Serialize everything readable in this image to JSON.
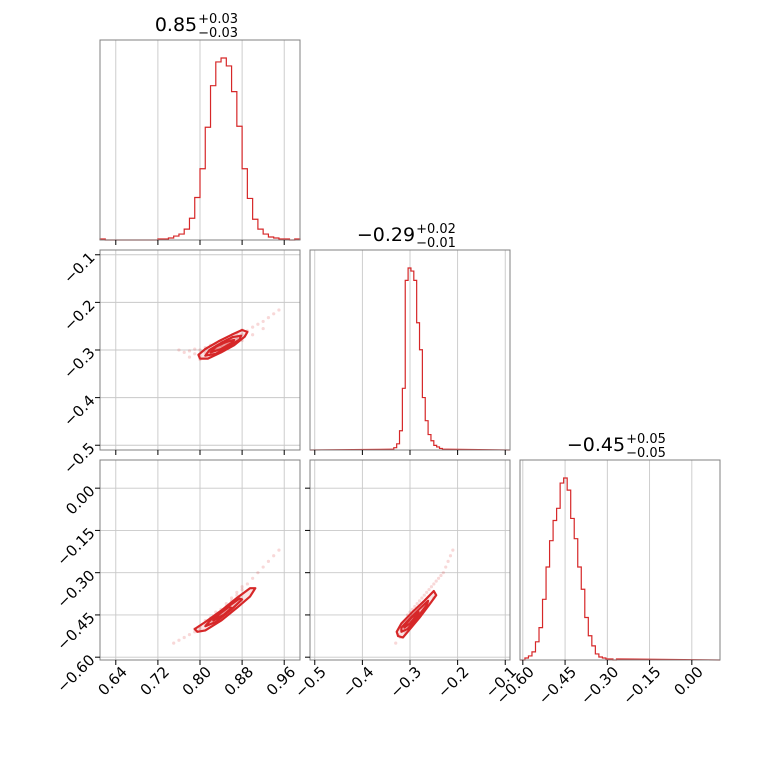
{
  "chart_data": {
    "type": "corner",
    "color": "#d62728",
    "grid": true,
    "parameters": [
      {
        "index": 0,
        "title": {
          "value": "0.85",
          "plus": "+0.03",
          "minus": "−0.03"
        },
        "range": [
          0.61,
          0.99
        ],
        "ticks": [
          0.64,
          0.72,
          0.8,
          0.88,
          0.96
        ],
        "tick_labels": [
          "0.64",
          "0.72",
          "0.80",
          "0.88",
          "0.96"
        ],
        "hist_bin_width": 0.01,
        "hist_x": [
          0.61,
          0.62,
          0.63,
          0.64,
          0.65,
          0.66,
          0.67,
          0.68,
          0.69,
          0.7,
          0.71,
          0.72,
          0.73,
          0.74,
          0.75,
          0.76,
          0.77,
          0.78,
          0.79,
          0.8,
          0.81,
          0.82,
          0.83,
          0.84,
          0.85,
          0.86,
          0.87,
          0.88,
          0.89,
          0.9,
          0.91,
          0.92,
          0.93,
          0.94,
          0.95,
          0.96,
          0.97,
          0.98
        ],
        "hist_counts": [
          1,
          0,
          0,
          0,
          0,
          0,
          0,
          0,
          0,
          0,
          0,
          1,
          1,
          2,
          4,
          6,
          11,
          22,
          43,
          72,
          114,
          156,
          180,
          184,
          176,
          150,
          115,
          72,
          42,
          21,
          11,
          6,
          3,
          2,
          1,
          1,
          0,
          1
        ]
      },
      {
        "index": 1,
        "title": {
          "value": "−0.29",
          "plus": "+0.02",
          "minus": "−0.01"
        },
        "range": [
          -0.51,
          -0.09
        ],
        "ticks": [
          -0.5,
          -0.4,
          -0.3,
          -0.2,
          -0.1
        ],
        "tick_labels": [
          "−0.5",
          "−0.4",
          "−0.3",
          "−0.2",
          "−0.1"
        ],
        "hist_bin_width": 0.006,
        "hist_x": [
          -0.34,
          -0.334,
          -0.328,
          -0.322,
          -0.316,
          -0.31,
          -0.304,
          -0.298,
          -0.292,
          -0.286,
          -0.28,
          -0.274,
          -0.268,
          -0.262,
          -0.256,
          -0.25,
          -0.244,
          -0.238,
          -0.232,
          -0.226
        ],
        "hist_counts": [
          1,
          3,
          8,
          25,
          80,
          220,
          236,
          232,
          220,
          165,
          130,
          68,
          38,
          20,
          12,
          6,
          4,
          2,
          1,
          1
        ]
      },
      {
        "index": 2,
        "title": {
          "value": "−0.45",
          "plus": "+0.05",
          "minus": "−0.05"
        },
        "range": [
          -0.61,
          0.1
        ],
        "ticks": [
          -0.6,
          -0.45,
          -0.3,
          -0.15,
          0.0
        ],
        "tick_labels": [
          "−0.60",
          "−0.45",
          "−0.30",
          "−0.15",
          "0.00"
        ],
        "y_tick_labels": [
          "−0.60",
          "−0.45",
          "−0.30",
          "−0.15",
          "0.00"
        ],
        "hist_bin_width": 0.0125,
        "hist_x": [
          -0.605,
          -0.5925,
          -0.58,
          -0.5675,
          -0.555,
          -0.5425,
          -0.53,
          -0.5175,
          -0.505,
          -0.4925,
          -0.48,
          -0.4675,
          -0.455,
          -0.4425,
          -0.43,
          -0.4175,
          -0.405,
          -0.3925,
          -0.38,
          -0.3675,
          -0.355,
          -0.3425,
          -0.33,
          -0.3175,
          -0.305,
          -0.2925,
          -0.28,
          -0.2675
        ],
        "hist_counts": [
          0,
          2,
          4,
          8,
          18,
          32,
          60,
          92,
          118,
          138,
          150,
          175,
          180,
          168,
          140,
          120,
          92,
          70,
          42,
          24,
          14,
          6,
          3,
          2,
          1,
          1,
          0,
          1
        ]
      }
    ],
    "scatter_panels": [
      {
        "x_param": 0,
        "y_param": 1,
        "points": [
          [
            0.77,
            -0.305
          ],
          [
            0.78,
            -0.302
          ],
          [
            0.79,
            -0.308
          ],
          [
            0.79,
            -0.298
          ],
          [
            0.8,
            -0.312
          ],
          [
            0.8,
            -0.3
          ],
          [
            0.81,
            -0.305
          ],
          [
            0.81,
            -0.295
          ],
          [
            0.82,
            -0.3
          ],
          [
            0.82,
            -0.29
          ],
          [
            0.83,
            -0.296
          ],
          [
            0.83,
            -0.286
          ],
          [
            0.84,
            -0.29
          ],
          [
            0.84,
            -0.28
          ],
          [
            0.85,
            -0.285
          ],
          [
            0.85,
            -0.276
          ],
          [
            0.86,
            -0.28
          ],
          [
            0.86,
            -0.27
          ],
          [
            0.87,
            -0.274
          ],
          [
            0.87,
            -0.265
          ],
          [
            0.88,
            -0.268
          ],
          [
            0.88,
            -0.258
          ],
          [
            0.89,
            -0.26
          ],
          [
            0.9,
            -0.252
          ],
          [
            0.91,
            -0.246
          ],
          [
            0.92,
            -0.24
          ],
          [
            0.93,
            -0.232
          ],
          [
            0.94,
            -0.224
          ],
          [
            0.95,
            -0.216
          ],
          [
            0.76,
            -0.3
          ],
          [
            0.78,
            -0.315
          ],
          [
            0.8,
            -0.32
          ],
          [
            0.82,
            -0.312
          ],
          [
            0.84,
            -0.3
          ],
          [
            0.86,
            -0.29
          ],
          [
            0.88,
            -0.28
          ],
          [
            0.9,
            -0.268
          ],
          [
            0.92,
            -0.255
          ]
        ],
        "contours": [
          [
            [
              0.8,
              -0.318
            ],
            [
              0.815,
              -0.318
            ],
            [
              0.84,
              -0.305
            ],
            [
              0.865,
              -0.29
            ],
            [
              0.885,
              -0.272
            ],
            [
              0.89,
              -0.262
            ],
            [
              0.88,
              -0.258
            ],
            [
              0.86,
              -0.268
            ],
            [
              0.835,
              -0.282
            ],
            [
              0.81,
              -0.298
            ],
            [
              0.797,
              -0.31
            ]
          ],
          [
            [
              0.81,
              -0.312
            ],
            [
              0.83,
              -0.308
            ],
            [
              0.855,
              -0.292
            ],
            [
              0.875,
              -0.278
            ],
            [
              0.878,
              -0.27
            ],
            [
              0.862,
              -0.273
            ],
            [
              0.84,
              -0.285
            ],
            [
              0.818,
              -0.3
            ]
          ],
          [
            [
              0.82,
              -0.305
            ],
            [
              0.84,
              -0.298
            ],
            [
              0.86,
              -0.285
            ],
            [
              0.865,
              -0.279
            ],
            [
              0.85,
              -0.283
            ],
            [
              0.83,
              -0.293
            ]
          ]
        ]
      },
      {
        "x_param": 0,
        "y_param": 2,
        "points": [
          [
            0.77,
            -0.53
          ],
          [
            0.78,
            -0.52
          ],
          [
            0.79,
            -0.51
          ],
          [
            0.79,
            -0.5
          ],
          [
            0.8,
            -0.5
          ],
          [
            0.8,
            -0.49
          ],
          [
            0.81,
            -0.48
          ],
          [
            0.81,
            -0.47
          ],
          [
            0.82,
            -0.47
          ],
          [
            0.82,
            -0.46
          ],
          [
            0.83,
            -0.45
          ],
          [
            0.83,
            -0.44
          ],
          [
            0.84,
            -0.44
          ],
          [
            0.84,
            -0.43
          ],
          [
            0.85,
            -0.42
          ],
          [
            0.85,
            -0.41
          ],
          [
            0.86,
            -0.4
          ],
          [
            0.86,
            -0.39
          ],
          [
            0.87,
            -0.38
          ],
          [
            0.87,
            -0.37
          ],
          [
            0.88,
            -0.36
          ],
          [
            0.88,
            -0.35
          ],
          [
            0.89,
            -0.34
          ],
          [
            0.9,
            -0.32
          ],
          [
            0.91,
            -0.3
          ],
          [
            0.92,
            -0.28
          ],
          [
            0.93,
            -0.26
          ],
          [
            0.94,
            -0.24
          ],
          [
            0.95,
            -0.22
          ],
          [
            0.76,
            -0.54
          ],
          [
            0.75,
            -0.55
          ]
        ],
        "contours": [
          [
            [
              0.795,
              -0.51
            ],
            [
              0.81,
              -0.505
            ],
            [
              0.84,
              -0.47
            ],
            [
              0.87,
              -0.425
            ],
            [
              0.895,
              -0.385
            ],
            [
              0.905,
              -0.355
            ],
            [
              0.895,
              -0.355
            ],
            [
              0.87,
              -0.39
            ],
            [
              0.84,
              -0.435
            ],
            [
              0.81,
              -0.475
            ],
            [
              0.79,
              -0.5
            ]
          ],
          [
            [
              0.81,
              -0.49
            ],
            [
              0.83,
              -0.475
            ],
            [
              0.86,
              -0.43
            ],
            [
              0.88,
              -0.395
            ],
            [
              0.875,
              -0.392
            ],
            [
              0.85,
              -0.425
            ],
            [
              0.82,
              -0.468
            ]
          ],
          [
            [
              0.825,
              -0.47
            ],
            [
              0.845,
              -0.45
            ],
            [
              0.86,
              -0.425
            ],
            [
              0.855,
              -0.422
            ],
            [
              0.838,
              -0.445
            ]
          ]
        ]
      },
      {
        "x_param": 1,
        "y_param": 2,
        "points": [
          [
            -0.33,
            -0.55
          ],
          [
            -0.325,
            -0.52
          ],
          [
            -0.32,
            -0.5
          ],
          [
            -0.315,
            -0.48
          ],
          [
            -0.31,
            -0.47
          ],
          [
            -0.305,
            -0.45
          ],
          [
            -0.3,
            -0.44
          ],
          [
            -0.295,
            -0.43
          ],
          [
            -0.29,
            -0.42
          ],
          [
            -0.285,
            -0.41
          ],
          [
            -0.28,
            -0.4
          ],
          [
            -0.275,
            -0.39
          ],
          [
            -0.27,
            -0.38
          ],
          [
            -0.265,
            -0.37
          ],
          [
            -0.26,
            -0.36
          ],
          [
            -0.255,
            -0.35
          ],
          [
            -0.25,
            -0.34
          ],
          [
            -0.245,
            -0.33
          ],
          [
            -0.24,
            -0.32
          ],
          [
            -0.235,
            -0.31
          ],
          [
            -0.23,
            -0.3
          ],
          [
            -0.225,
            -0.28
          ],
          [
            -0.22,
            -0.26
          ],
          [
            -0.215,
            -0.24
          ],
          [
            -0.21,
            -0.22
          ],
          [
            -0.32,
            -0.53
          ],
          [
            -0.31,
            -0.51
          ],
          [
            -0.3,
            -0.49
          ],
          [
            -0.29,
            -0.47
          ],
          [
            -0.28,
            -0.45
          ],
          [
            -0.27,
            -0.43
          ],
          [
            -0.26,
            -0.41
          ],
          [
            -0.25,
            -0.39
          ]
        ],
        "contours": [
          [
            [
              -0.325,
              -0.525
            ],
            [
              -0.315,
              -0.53
            ],
            [
              -0.3,
              -0.5
            ],
            [
              -0.28,
              -0.46
            ],
            [
              -0.26,
              -0.415
            ],
            [
              -0.245,
              -0.38
            ],
            [
              -0.25,
              -0.365
            ],
            [
              -0.27,
              -0.4
            ],
            [
              -0.295,
              -0.44
            ],
            [
              -0.318,
              -0.48
            ],
            [
              -0.328,
              -0.51
            ]
          ],
          [
            [
              -0.318,
              -0.51
            ],
            [
              -0.305,
              -0.5
            ],
            [
              -0.285,
              -0.46
            ],
            [
              -0.265,
              -0.415
            ],
            [
              -0.262,
              -0.4
            ],
            [
              -0.278,
              -0.425
            ],
            [
              -0.3,
              -0.462
            ],
            [
              -0.318,
              -0.495
            ]
          ],
          [
            [
              -0.312,
              -0.495
            ],
            [
              -0.3,
              -0.48
            ],
            [
              -0.285,
              -0.45
            ],
            [
              -0.282,
              -0.44
            ],
            [
              -0.296,
              -0.458
            ],
            [
              -0.31,
              -0.485
            ]
          ]
        ]
      }
    ]
  }
}
